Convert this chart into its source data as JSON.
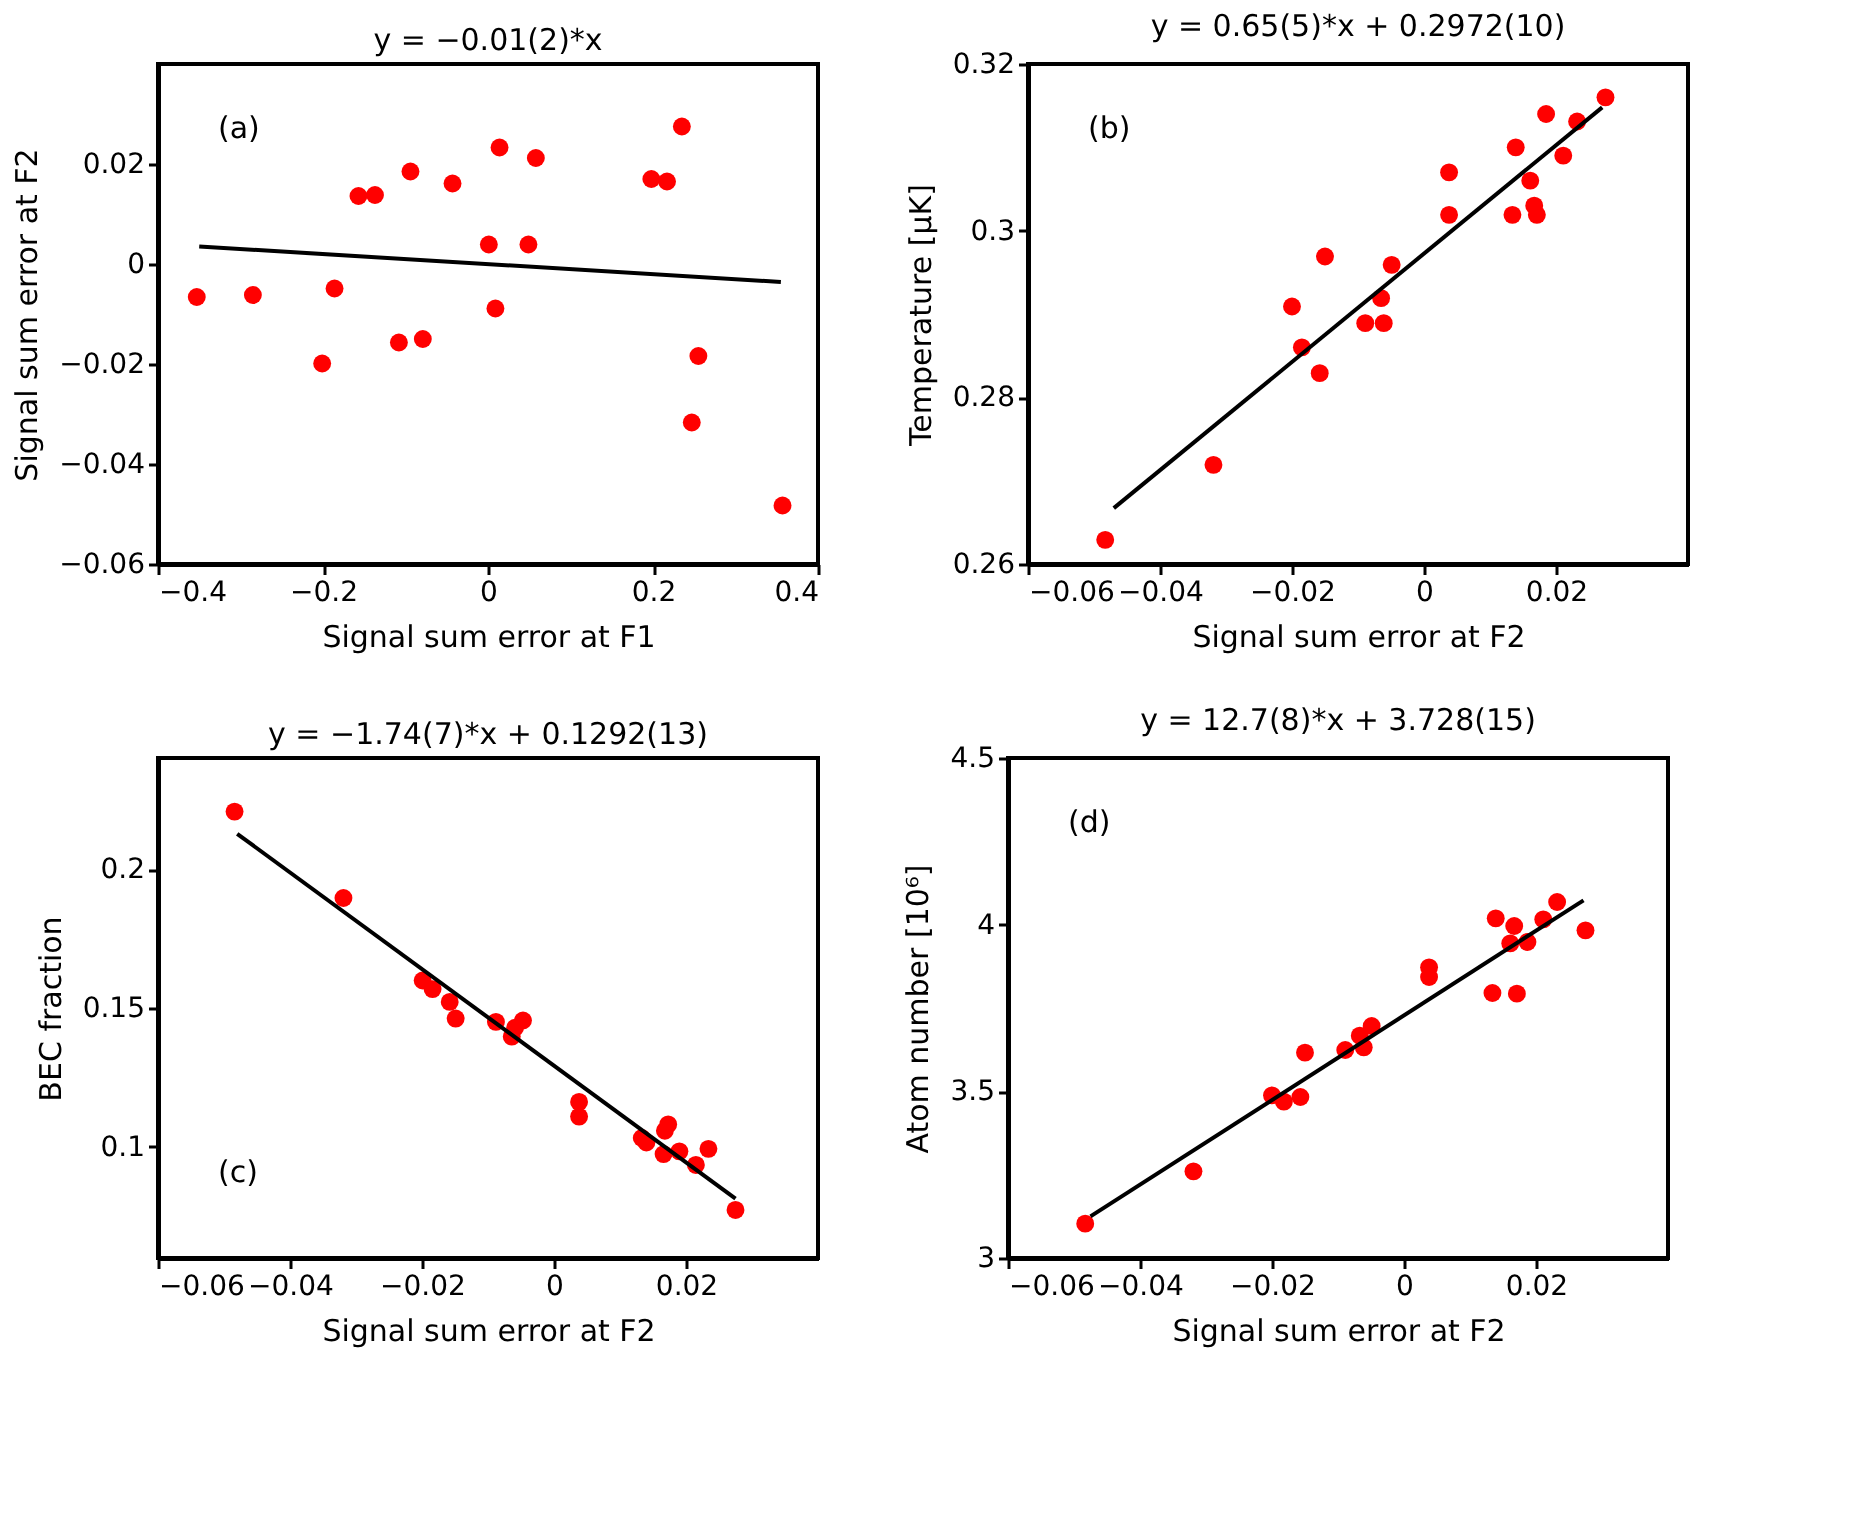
{
  "chart_data": [
    {
      "type": "scatter",
      "title": "y = −0.01(2)*x",
      "xlabel": "Signal sum error at F1",
      "ylabel": "Signal sum error at F2",
      "annotations": [
        "(a)"
      ],
      "xlim": [
        -0.4,
        0.4
      ],
      "xticks": [
        -0.4,
        -0.2,
        0,
        0.2,
        0.4
      ],
      "ylim": [
        -0.06,
        0.04
      ],
      "yticks": [
        -0.06,
        -0.04,
        -0.02,
        0,
        0.02
      ],
      "grid": false,
      "marker": "circle",
      "series": [
        {
          "color": "#ff0000",
          "x": [
            -0.353,
            -0.285,
            -0.186,
            -0.201,
            -0.157,
            -0.137,
            -0.094,
            -0.108,
            -0.079,
            -0.043,
            0.001,
            0.014,
            0.009,
            0.049,
            0.058,
            0.198,
            0.217,
            0.235,
            0.255,
            0.247,
            0.357
          ],
          "values": [
            -0.0066,
            -0.0062,
            -0.0049,
            -0.0199,
            0.0136,
            0.0138,
            0.0185,
            -0.0157,
            -0.015,
            0.0161,
            0.0039,
            0.0233,
            -0.0089,
            0.0039,
            0.0212,
            0.017,
            0.0165,
            0.0275,
            -0.0184,
            -0.0317,
            -0.0483
          ]
        },
        {
          "type": "line",
          "marker": "none",
          "color": "#000000",
          "x": [
            -0.35,
            0.355
          ],
          "values": [
            0.0035,
            -0.0036
          ]
        }
      ]
    },
    {
      "type": "scatter",
      "title": "y = 0.65(5)*x + 0.2972(10)",
      "xlabel": "Signal sum error at F2",
      "ylabel": "Temperature [μK]",
      "annotations": [
        "(b)"
      ],
      "xlim": [
        -0.06,
        0.04
      ],
      "xticks": [
        -0.06,
        -0.04,
        -0.02,
        0,
        0.02
      ],
      "ylim": [
        0.26,
        0.32
      ],
      "yticks": [
        0.26,
        0.28,
        0.3,
        0.32
      ],
      "grid": false,
      "marker": "circle",
      "series": [
        {
          "color": "#ff0000",
          "x": [
            -0.0483,
            -0.0319,
            -0.02,
            -0.0185,
            -0.0158,
            -0.015,
            -0.0089,
            -0.0061,
            -0.0065,
            -0.0049,
            0.0038,
            0.0038,
            0.0134,
            0.0139,
            0.0161,
            0.0167,
            0.0171,
            0.0185,
            0.0211,
            0.0232,
            0.0275
          ],
          "values": [
            0.2629,
            0.2719,
            0.2909,
            0.286,
            0.2829,
            0.2969,
            0.2889,
            0.2889,
            0.2919,
            0.2959,
            0.307,
            0.3019,
            0.3019,
            0.31,
            0.306,
            0.303,
            0.3019,
            0.314,
            0.309,
            0.3131,
            0.316
          ]
        },
        {
          "type": "line",
          "marker": "none",
          "color": "#000000",
          "x": [
            -0.047,
            0.027
          ],
          "values": [
            0.2667,
            0.3148
          ]
        }
      ]
    },
    {
      "type": "scatter",
      "title": "y = −1.74(7)*x + 0.1292(13)",
      "xlabel": "Signal sum error at F2",
      "ylabel": "BEC fraction",
      "annotations": [
        "(c)"
      ],
      "xlim": [
        -0.06,
        0.04
      ],
      "xticks": [
        -0.06,
        -0.04,
        -0.02,
        0,
        0.02
      ],
      "ylim": [
        0.06,
        0.24
      ],
      "yticks": [
        0.1,
        0.15,
        0.2
      ],
      "grid": false,
      "marker": "circle",
      "series": [
        {
          "color": "#ff0000",
          "x": [
            -0.0484,
            -0.0319,
            -0.0199,
            -0.0184,
            -0.0158,
            -0.0149,
            -0.0088,
            -0.0064,
            -0.0059,
            -0.0047,
            0.0038,
            0.0038,
            0.0133,
            0.014,
            0.0166,
            0.0168,
            0.0173,
            0.019,
            0.0215,
            0.0234,
            0.0275
          ],
          "values": [
            0.2207,
            0.1896,
            0.1599,
            0.1568,
            0.1522,
            0.1462,
            0.145,
            0.1397,
            0.1429,
            0.1455,
            0.1162,
            0.1109,
            0.1032,
            0.1016,
            0.0974,
            0.1058,
            0.1081,
            0.0984,
            0.0935,
            0.0993,
            0.0773
          ]
        },
        {
          "type": "line",
          "marker": "none",
          "color": "#000000",
          "x": [
            -0.048,
            0.0275
          ],
          "values": [
            0.2127,
            0.0814
          ]
        }
      ]
    },
    {
      "type": "scatter",
      "title": "y = 12.7(8)*x + 3.728(15)",
      "xlabel": "Signal sum error at F2",
      "ylabel": "Atom number [10⁶]",
      "annotations": [
        "(d)"
      ],
      "xlim": [
        -0.06,
        0.04
      ],
      "xticks": [
        -0.06,
        -0.04,
        -0.02,
        0,
        0.02
      ],
      "ylim": [
        3,
        4.5
      ],
      "yticks": [
        3,
        3.5,
        4,
        4.5
      ],
      "grid": false,
      "marker": "circle",
      "series": [
        {
          "color": "#ff0000",
          "x": [
            -0.0483,
            -0.0319,
            -0.02,
            -0.0182,
            -0.0157,
            -0.015,
            -0.0089,
            -0.0067,
            -0.0061,
            -0.0049,
            0.0038,
            0.0038,
            0.0134,
            0.0139,
            0.0161,
            0.0167,
            0.0171,
            0.0187,
            0.0211,
            0.0232,
            0.0275
          ],
          "values": [
            3.103,
            3.26,
            3.488,
            3.469,
            3.483,
            3.616,
            3.624,
            3.667,
            3.632,
            3.696,
            3.872,
            3.843,
            3.795,
            4.019,
            3.944,
            3.996,
            3.793,
            3.948,
            4.016,
            4.068,
            3.983
          ]
        },
        {
          "type": "line",
          "marker": "none",
          "color": "#000000",
          "x": [
            -0.0475,
            0.0272
          ],
          "values": [
            3.125,
            4.073
          ]
        }
      ]
    }
  ]
}
